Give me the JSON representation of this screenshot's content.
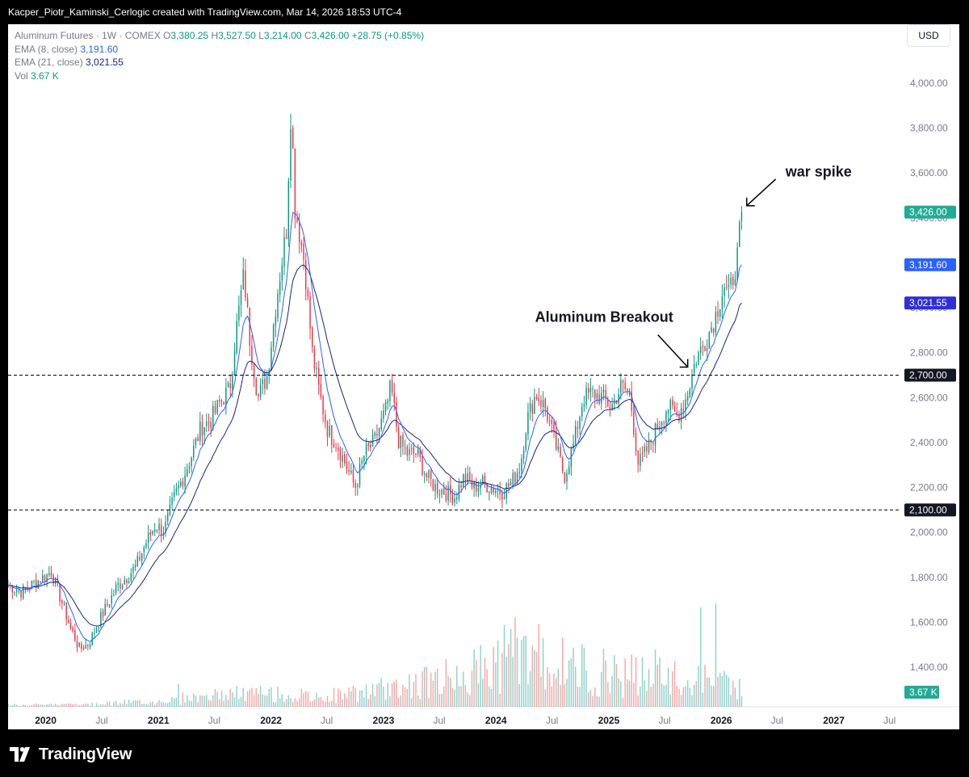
{
  "header": {
    "attribution": "Kacper_Piotr_Kaminski_Cerlogic created with TradingView.com, Mar 14, 2026 18:53 UTC-4"
  },
  "legend": {
    "symbol": "Aluminum Futures · 1W · COMEX",
    "o_label": "O",
    "o_value": "3,380.25",
    "h_label": "H",
    "h_value": "3,527.50",
    "l_label": "L",
    "l_value": "3,214.00",
    "c_label": "C",
    "c_value": "3,426.00",
    "change": "+28.75 (+0.85%)",
    "ema8_label": "EMA (8, close)",
    "ema8_value": "3,191.60",
    "ema21_label": "EMA (21, close)",
    "ema21_value": "3,021.55",
    "vol_label": "Vol",
    "vol_value": "3.67 K"
  },
  "currency": "USD",
  "footer": {
    "brand": "TradingView",
    "logo_icon": "tradingview-logo-icon"
  },
  "colors": {
    "up": "#089981",
    "down": "#f23645",
    "up_soft": "#26a69a",
    "down_soft": "#ef5350",
    "ema8": "#2962ff",
    "ema21": "#1a237e",
    "axis_text": "#787b86",
    "badge_up": "#22ab94"
  },
  "chart_data": {
    "type": "candlestick",
    "timeframe": "1W",
    "ylim": [
      1400,
      4100
    ],
    "y_ticks": [
      1400,
      1600,
      1800,
      2000,
      2200,
      2400,
      2600,
      2800,
      3000,
      3200,
      3400,
      3600,
      3800,
      4000
    ],
    "y_tick_labels": [
      "1,400.00",
      "1,600.00",
      "1,800.00",
      "2,000.00",
      "2,200.00",
      "2,400.00",
      "2,600.00",
      "2,800.00",
      "3,000.00",
      "3,200.00",
      "3,400.00",
      "3,600.00",
      "3,800.00",
      "4,000.00"
    ],
    "x_ticks": [
      {
        "date": "2020-01-01",
        "label": "2020",
        "bold": true
      },
      {
        "date": "2020-07-01",
        "label": "Jul",
        "bold": false
      },
      {
        "date": "2021-01-01",
        "label": "2021",
        "bold": true
      },
      {
        "date": "2021-07-01",
        "label": "Jul",
        "bold": false
      },
      {
        "date": "2022-01-01",
        "label": "2022",
        "bold": true
      },
      {
        "date": "2022-07-01",
        "label": "Jul",
        "bold": false
      },
      {
        "date": "2023-01-01",
        "label": "2023",
        "bold": true
      },
      {
        "date": "2023-07-01",
        "label": "Jul",
        "bold": false
      },
      {
        "date": "2024-01-01",
        "label": "2024",
        "bold": true
      },
      {
        "date": "2024-07-01",
        "label": "Jul",
        "bold": false
      },
      {
        "date": "2025-01-01",
        "label": "2025",
        "bold": true
      },
      {
        "date": "2025-07-01",
        "label": "Jul",
        "bold": false
      },
      {
        "date": "2026-01-01",
        "label": "2026",
        "bold": true
      },
      {
        "date": "2026-07-01",
        "label": "Jul",
        "bold": false
      },
      {
        "date": "2027-01-01",
        "label": "2027",
        "bold": true
      },
      {
        "date": "2027-07-01",
        "label": "Jul",
        "bold": false
      }
    ],
    "x_range": [
      "2019-09-01",
      "2027-08-05"
    ],
    "horizontal_lines": [
      {
        "value": 2700,
        "label": "2,700.00",
        "style": "dashed"
      },
      {
        "value": 2100,
        "label": "2,100.00",
        "style": "dashed"
      }
    ],
    "price_badges": [
      {
        "value": 3426,
        "label": "3,426.00",
        "color": "#22ab94"
      },
      {
        "value": 3191.6,
        "label": "3,191.60",
        "color": "#2962ff"
      },
      {
        "value": 3021.55,
        "label": "3,021.55",
        "color": "#2f2fd8"
      }
    ],
    "volume_badge": {
      "label": "3.67 K",
      "color": "#22ab94"
    },
    "annotations": [
      {
        "text": "war spike",
        "date": "2026-03-14",
        "value": 3440
      },
      {
        "text": "Aluminum Breakout",
        "date": "2025-09-22",
        "value": 2700
      }
    ],
    "close_path": [
      [
        "2019-09-02",
        1765
      ],
      [
        "2019-10-15",
        1735
      ],
      [
        "2019-12-01",
        1780
      ],
      [
        "2020-01-20",
        1825
      ],
      [
        "2020-02-20",
        1700
      ],
      [
        "2020-03-20",
        1580
      ],
      [
        "2020-04-20",
        1480
      ],
      [
        "2020-05-20",
        1505
      ],
      [
        "2020-06-20",
        1600
      ],
      [
        "2020-07-20",
        1680
      ],
      [
        "2020-08-20",
        1760
      ],
      [
        "2020-09-20",
        1800
      ],
      [
        "2020-10-20",
        1850
      ],
      [
        "2020-11-20",
        1950
      ],
      [
        "2020-12-20",
        2030
      ],
      [
        "2021-01-20",
        2010
      ],
      [
        "2021-02-20",
        2150
      ],
      [
        "2021-03-20",
        2240
      ],
      [
        "2021-04-20",
        2350
      ],
      [
        "2021-05-20",
        2470
      ],
      [
        "2021-06-20",
        2500
      ],
      [
        "2021-07-20",
        2580
      ],
      [
        "2021-08-20",
        2640
      ],
      [
        "2021-09-10",
        2900
      ],
      [
        "2021-10-05",
        3150
      ],
      [
        "2021-10-25",
        2850
      ],
      [
        "2021-11-20",
        2600
      ],
      [
        "2021-12-20",
        2700
      ],
      [
        "2022-01-20",
        3050
      ],
      [
        "2022-02-20",
        3350
      ],
      [
        "2022-03-07",
        3900
      ],
      [
        "2022-03-20",
        3450
      ],
      [
        "2022-04-20",
        3200
      ],
      [
        "2022-05-15",
        2800
      ],
      [
        "2022-06-10",
        2600
      ],
      [
        "2022-07-05",
        2450
      ],
      [
        "2022-08-01",
        2400
      ],
      [
        "2022-09-01",
        2300
      ],
      [
        "2022-10-01",
        2200
      ],
      [
        "2022-11-01",
        2350
      ],
      [
        "2022-12-01",
        2400
      ],
      [
        "2023-01-10",
        2550
      ],
      [
        "2023-01-25",
        2650
      ],
      [
        "2023-02-20",
        2400
      ],
      [
        "2023-03-20",
        2350
      ],
      [
        "2023-04-20",
        2350
      ],
      [
        "2023-05-20",
        2250
      ],
      [
        "2023-06-20",
        2200
      ],
      [
        "2023-07-20",
        2180
      ],
      [
        "2023-08-20",
        2160
      ],
      [
        "2023-09-20",
        2250
      ],
      [
        "2023-10-20",
        2200
      ],
      [
        "2023-11-20",
        2220
      ],
      [
        "2023-12-20",
        2200
      ],
      [
        "2024-01-20",
        2180
      ],
      [
        "2024-02-20",
        2220
      ],
      [
        "2024-03-20",
        2300
      ],
      [
        "2024-04-10",
        2500
      ],
      [
        "2024-05-10",
        2620
      ],
      [
        "2024-06-10",
        2550
      ],
      [
        "2024-07-10",
        2400
      ],
      [
        "2024-08-10",
        2250
      ],
      [
        "2024-09-10",
        2400
      ],
      [
        "2024-10-10",
        2600
      ],
      [
        "2024-11-10",
        2620
      ],
      [
        "2024-12-10",
        2600
      ],
      [
        "2025-01-10",
        2560
      ],
      [
        "2025-02-10",
        2650
      ],
      [
        "2025-03-10",
        2620
      ],
      [
        "2025-04-07",
        2300
      ],
      [
        "2025-05-10",
        2380
      ],
      [
        "2025-06-10",
        2480
      ],
      [
        "2025-07-10",
        2560
      ],
      [
        "2025-08-10",
        2520
      ],
      [
        "2025-09-10",
        2600
      ],
      [
        "2025-10-10",
        2770
      ],
      [
        "2025-11-10",
        2850
      ],
      [
        "2025-12-10",
        2950
      ],
      [
        "2026-01-10",
        3100
      ],
      [
        "2026-01-25",
        3050
      ],
      [
        "2026-02-10",
        3150
      ],
      [
        "2026-02-25",
        3250
      ],
      [
        "2026-03-05",
        3400
      ],
      [
        "2026-03-12",
        3426
      ]
    ],
    "volume_path": [
      [
        "2019-09-02",
        1
      ],
      [
        "2020-06-01",
        2
      ],
      [
        "2021-01-01",
        5
      ],
      [
        "2021-06-01",
        12
      ],
      [
        "2021-12-01",
        15
      ],
      [
        "2022-06-01",
        10
      ],
      [
        "2022-12-01",
        18
      ],
      [
        "2023-06-01",
        30
      ],
      [
        "2023-12-01",
        45
      ],
      [
        "2024-03-01",
        70
      ],
      [
        "2024-09-01",
        45
      ],
      [
        "2025-03-01",
        40
      ],
      [
        "2025-09-01",
        30
      ],
      [
        "2026-01-01",
        35
      ],
      [
        "2026-03-12",
        20
      ]
    ],
    "last_volume": "3.67 K",
    "ema8_last": 3191.6,
    "ema21_last": 3021.55
  }
}
